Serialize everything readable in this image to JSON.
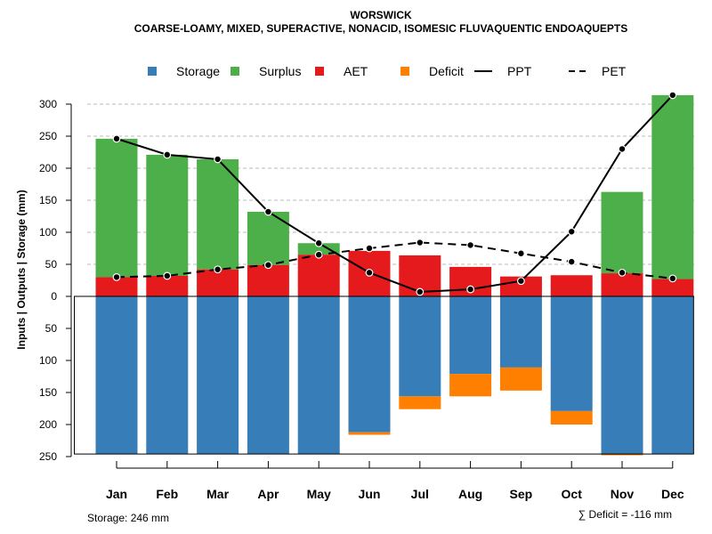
{
  "chart_data": {
    "type": "bar",
    "title": "WORSWICK",
    "subtitle": "COARSE-LOAMY, MIXED, SUPERACTIVE, NONACID, ISOMESIC FLUVAQUENTIC ENDOAQUEPTS",
    "ylabel": "Inputs | Outputs | Storage    (mm)",
    "xlabel": "",
    "ylim": [
      -250,
      320
    ],
    "yticks": [
      300,
      250,
      200,
      150,
      100,
      50,
      0,
      -50,
      -100,
      -150,
      -200,
      -250
    ],
    "ytick_labels": [
      "300",
      "250",
      "200",
      "150",
      "100",
      "50",
      "0",
      "50",
      "100",
      "150",
      "200",
      "250"
    ],
    "grid": true,
    "legend_position": "top",
    "legend": [
      {
        "label": "Storage",
        "type": "box",
        "color": "#377eb8"
      },
      {
        "label": "Surplus",
        "type": "box",
        "color": "#4daf4a"
      },
      {
        "label": "AET",
        "type": "box",
        "color": "#e41a1c"
      },
      {
        "label": "Deficit",
        "type": "box",
        "color": "#ff7f00"
      },
      {
        "label": "PPT",
        "type": "solid-line",
        "color": "#000000"
      },
      {
        "label": "PET",
        "type": "dashed-line",
        "color": "#000000"
      }
    ],
    "categories": [
      "Jan",
      "Feb",
      "Mar",
      "Apr",
      "May",
      "Jun",
      "Jul",
      "Aug",
      "Sep",
      "Oct",
      "Nov",
      "Dec"
    ],
    "series": [
      {
        "name": "AET",
        "color": "#e41a1c",
        "values": [
          30,
          32,
          42,
          49,
          65,
          71,
          64,
          46,
          31,
          33,
          36,
          27
        ]
      },
      {
        "name": "Surplus",
        "color": "#4daf4a",
        "values": [
          216,
          189,
          172,
          83,
          18,
          0,
          0,
          0,
          0,
          0,
          127,
          287
        ]
      },
      {
        "name": "Storage",
        "color": "#377eb8",
        "values": [
          246,
          246,
          246,
          246,
          246,
          212,
          156,
          121,
          111,
          179,
          246,
          246
        ]
      },
      {
        "name": "Deficit",
        "color": "#ff7f00",
        "values": [
          0,
          0,
          0,
          0,
          0,
          4,
          20,
          35,
          36,
          21,
          2,
          0
        ]
      },
      {
        "name": "PPT",
        "color": "#000000",
        "values": [
          246,
          221,
          214,
          132,
          83,
          37,
          7,
          11,
          24,
          101,
          230,
          314
        ]
      },
      {
        "name": "PET",
        "color": "#000000",
        "values": [
          30,
          32,
          42,
          49,
          65,
          75,
          84,
          80,
          67,
          54,
          37,
          28
        ]
      }
    ],
    "annotations": {
      "storage": "Storage: 246 mm",
      "deficit": "∑ Deficit = -116 mm"
    }
  }
}
